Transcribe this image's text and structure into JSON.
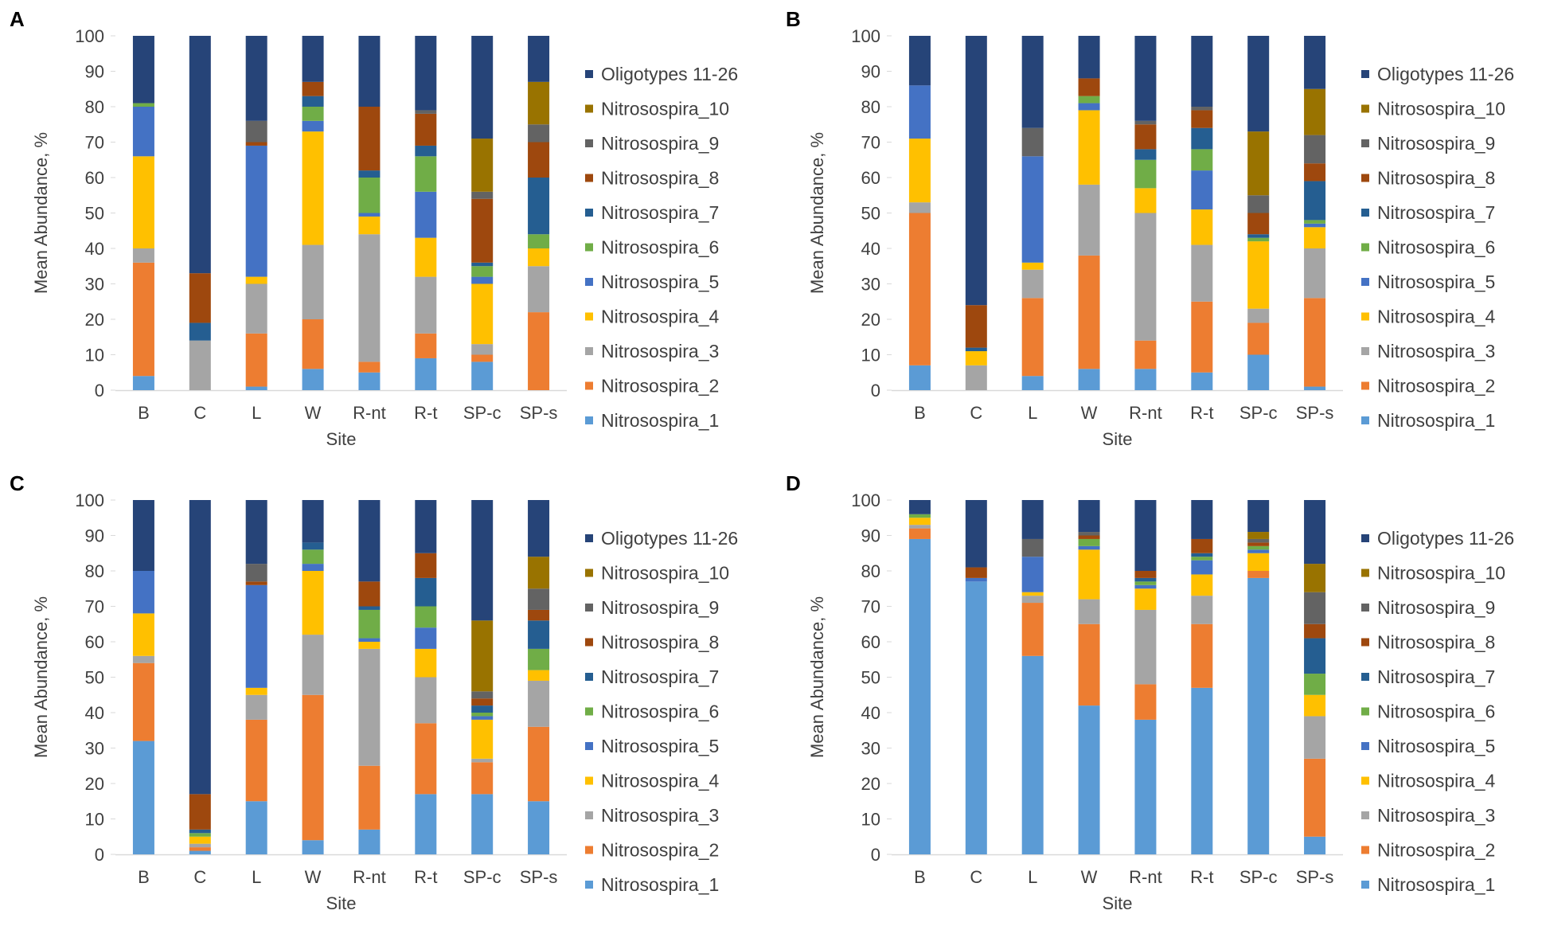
{
  "legend_labels": [
    "Oligotypes 11-26",
    "Nitrosospira_10",
    "Nitrosospira_9",
    "Nitrosospira_8",
    "Nitrosospira_7",
    "Nitrosospira_6",
    "Nitrosospira_5",
    "Nitrosospira_4",
    "Nitrosospira_3",
    "Nitrosospira_2",
    "Nitrosospira_1"
  ],
  "colors": {
    "Nitrosospira_1": "#5b9bd5",
    "Nitrosospira_2": "#ed7d31",
    "Nitrosospira_3": "#a5a5a5",
    "Nitrosospira_4": "#ffc000",
    "Nitrosospira_5": "#4472c4",
    "Nitrosospira_6": "#70ad47",
    "Nitrosospira_7": "#255e91",
    "Nitrosospira_8": "#9e480e",
    "Nitrosospira_9": "#636363",
    "Nitrosospira_10": "#997300",
    "Oligotypes 11-26": "#264478"
  },
  "chart_data": [
    {
      "panel_label": "A",
      "type": "bar",
      "stacked": true,
      "xlabel": "Site",
      "ylabel": "Mean Abundance, %",
      "ylim": [
        0,
        100
      ],
      "yticks": [
        0,
        10,
        20,
        30,
        40,
        50,
        60,
        70,
        80,
        90,
        100
      ],
      "categories": [
        "B",
        "C",
        "L",
        "W",
        "R-nt",
        "R-t",
        "SP-c",
        "SP-s"
      ],
      "series": [
        {
          "name": "Nitrosospira_1",
          "values": [
            4,
            0,
            1,
            6,
            5,
            9,
            8,
            0
          ]
        },
        {
          "name": "Nitrosospira_2",
          "values": [
            32,
            0,
            15,
            14,
            3,
            7,
            2,
            22
          ]
        },
        {
          "name": "Nitrosospira_3",
          "values": [
            4,
            14,
            14,
            21,
            36,
            16,
            3,
            13
          ]
        },
        {
          "name": "Nitrosospira_4",
          "values": [
            26,
            0,
            2,
            32,
            5,
            11,
            17,
            5
          ]
        },
        {
          "name": "Nitrosospira_5",
          "values": [
            14,
            0,
            37,
            3,
            1,
            13,
            2,
            0
          ]
        },
        {
          "name": "Nitrosospira_6",
          "values": [
            1,
            0,
            0,
            4,
            10,
            10,
            3,
            4
          ]
        },
        {
          "name": "Nitrosospira_7",
          "values": [
            0,
            5,
            0,
            3,
            2,
            3,
            1,
            16
          ]
        },
        {
          "name": "Nitrosospira_8",
          "values": [
            0,
            14,
            1,
            4,
            18,
            9,
            18,
            10
          ]
        },
        {
          "name": "Nitrosospira_9",
          "values": [
            0,
            0,
            6,
            0,
            0,
            1,
            2,
            5
          ]
        },
        {
          "name": "Nitrosospira_10",
          "values": [
            0,
            0,
            0,
            0,
            0,
            0,
            15,
            12
          ]
        },
        {
          "name": "Oligotypes 11-26",
          "values": [
            19,
            67,
            24,
            13,
            20,
            21,
            29,
            13
          ]
        }
      ]
    },
    {
      "panel_label": "B",
      "type": "bar",
      "stacked": true,
      "xlabel": "Site",
      "ylabel": "Mean Abundance, %",
      "ylim": [
        0,
        100
      ],
      "yticks": [
        0,
        10,
        20,
        30,
        40,
        50,
        60,
        70,
        80,
        90,
        100
      ],
      "categories": [
        "B",
        "C",
        "L",
        "W",
        "R-nt",
        "R-t",
        "SP-c",
        "SP-s"
      ],
      "series": [
        {
          "name": "Nitrosospira_1",
          "values": [
            7,
            0,
            4,
            6,
            6,
            5,
            10,
            1
          ]
        },
        {
          "name": "Nitrosospira_2",
          "values": [
            43,
            0,
            22,
            32,
            8,
            20,
            9,
            25
          ]
        },
        {
          "name": "Nitrosospira_3",
          "values": [
            3,
            7,
            8,
            20,
            36,
            16,
            4,
            14
          ]
        },
        {
          "name": "Nitrosospira_4",
          "values": [
            18,
            4,
            2,
            21,
            7,
            10,
            19,
            6
          ]
        },
        {
          "name": "Nitrosospira_5",
          "values": [
            15,
            0,
            30,
            2,
            0,
            11,
            0,
            1
          ]
        },
        {
          "name": "Nitrosospira_6",
          "values": [
            0,
            0,
            0,
            2,
            8,
            6,
            1,
            1
          ]
        },
        {
          "name": "Nitrosospira_7",
          "values": [
            0,
            1,
            0,
            0,
            3,
            6,
            1,
            11
          ]
        },
        {
          "name": "Nitrosospira_8",
          "values": [
            0,
            12,
            0,
            5,
            7,
            5,
            6,
            5
          ]
        },
        {
          "name": "Nitrosospira_9",
          "values": [
            0,
            0,
            8,
            0,
            1,
            1,
            5,
            8
          ]
        },
        {
          "name": "Nitrosospira_10",
          "values": [
            0,
            0,
            0,
            0,
            0,
            0,
            18,
            13
          ]
        },
        {
          "name": "Oligotypes 11-26",
          "values": [
            14,
            76,
            26,
            12,
            24,
            20,
            27,
            15
          ]
        }
      ]
    },
    {
      "panel_label": "C",
      "type": "bar",
      "stacked": true,
      "xlabel": "Site",
      "ylabel": "Mean Abundance, %",
      "ylim": [
        0,
        100
      ],
      "yticks": [
        0,
        10,
        20,
        30,
        40,
        50,
        60,
        70,
        80,
        90,
        100
      ],
      "categories": [
        "B",
        "C",
        "L",
        "W",
        "R-nt",
        "R-t",
        "SP-c",
        "SP-s"
      ],
      "series": [
        {
          "name": "Nitrosospira_1",
          "values": [
            32,
            1,
            15,
            4,
            7,
            17,
            17,
            15
          ]
        },
        {
          "name": "Nitrosospira_2",
          "values": [
            22,
            1,
            23,
            41,
            18,
            20,
            9,
            21
          ]
        },
        {
          "name": "Nitrosospira_3",
          "values": [
            2,
            1,
            7,
            17,
            33,
            13,
            1,
            13
          ]
        },
        {
          "name": "Nitrosospira_4",
          "values": [
            12,
            2,
            2,
            18,
            2,
            8,
            11,
            3
          ]
        },
        {
          "name": "Nitrosospira_5",
          "values": [
            12,
            0,
            29,
            2,
            1,
            6,
            1,
            0
          ]
        },
        {
          "name": "Nitrosospira_6",
          "values": [
            0,
            1,
            0,
            4,
            8,
            6,
            1,
            6
          ]
        },
        {
          "name": "Nitrosospira_7",
          "values": [
            0,
            1,
            0,
            2,
            1,
            8,
            2,
            8
          ]
        },
        {
          "name": "Nitrosospira_8",
          "values": [
            0,
            10,
            1,
            0,
            7,
            7,
            2,
            3
          ]
        },
        {
          "name": "Nitrosospira_9",
          "values": [
            0,
            0,
            5,
            0,
            0,
            0,
            2,
            6
          ]
        },
        {
          "name": "Nitrosospira_10",
          "values": [
            0,
            0,
            0,
            0,
            0,
            0,
            20,
            9
          ]
        },
        {
          "name": "Oligotypes 11-26",
          "values": [
            20,
            83,
            18,
            12,
            23,
            15,
            34,
            16
          ]
        }
      ]
    },
    {
      "panel_label": "D",
      "type": "bar",
      "stacked": true,
      "xlabel": "Site",
      "ylabel": "Mean Abundance, %",
      "ylim": [
        0,
        100
      ],
      "yticks": [
        0,
        10,
        20,
        30,
        40,
        50,
        60,
        70,
        80,
        90,
        100
      ],
      "categories": [
        "B",
        "C",
        "L",
        "W",
        "R-nt",
        "R-t",
        "SP-c",
        "SP-s"
      ],
      "series": [
        {
          "name": "Nitrosospira_1",
          "values": [
            89,
            77,
            56,
            42,
            38,
            47,
            78,
            5
          ]
        },
        {
          "name": "Nitrosospira_2",
          "values": [
            3,
            0,
            15,
            23,
            10,
            18,
            2,
            22
          ]
        },
        {
          "name": "Nitrosospira_3",
          "values": [
            1,
            0,
            2,
            7,
            21,
            8,
            0,
            12
          ]
        },
        {
          "name": "Nitrosospira_4",
          "values": [
            2,
            0,
            1,
            14,
            6,
            6,
            5,
            6
          ]
        },
        {
          "name": "Nitrosospira_5",
          "values": [
            0,
            1,
            10,
            1,
            1,
            4,
            1,
            0
          ]
        },
        {
          "name": "Nitrosospira_6",
          "values": [
            1,
            0,
            0,
            2,
            1,
            1,
            1,
            6
          ]
        },
        {
          "name": "Nitrosospira_7",
          "values": [
            0,
            0,
            0,
            0,
            1,
            1,
            0,
            10
          ]
        },
        {
          "name": "Nitrosospira_8",
          "values": [
            0,
            3,
            0,
            1,
            2,
            4,
            1,
            4
          ]
        },
        {
          "name": "Nitrosospira_9",
          "values": [
            0,
            0,
            5,
            1,
            0,
            0,
            1,
            9
          ]
        },
        {
          "name": "Nitrosospira_10",
          "values": [
            0,
            0,
            0,
            0,
            0,
            0,
            2,
            8
          ]
        },
        {
          "name": "Oligotypes 11-26",
          "values": [
            4,
            19,
            11,
            9,
            20,
            11,
            9,
            18
          ]
        }
      ]
    }
  ]
}
